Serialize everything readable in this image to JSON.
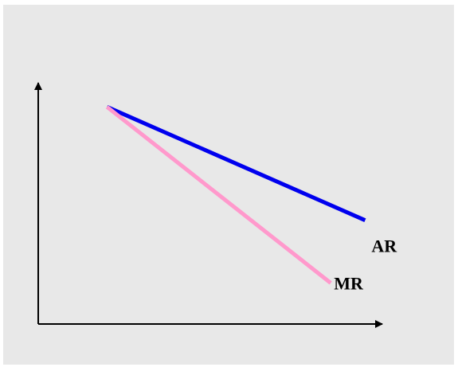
{
  "chart_data": {
    "type": "line",
    "title": "",
    "xlabel": "",
    "ylabel": "",
    "grid": false,
    "legend": "none",
    "xlim": [
      0,
      100
    ],
    "ylim": [
      0,
      100
    ],
    "series": [
      {
        "name": "AR",
        "color": "#0000ee",
        "x": [
          20,
          95
        ],
        "y": [
          90,
          43
        ]
      },
      {
        "name": "MR",
        "color": "#ff99cc",
        "x": [
          20,
          85
        ],
        "y": [
          90,
          17
        ]
      }
    ]
  },
  "colors": {
    "background": "#e8e8e8",
    "axis": "#000000"
  }
}
